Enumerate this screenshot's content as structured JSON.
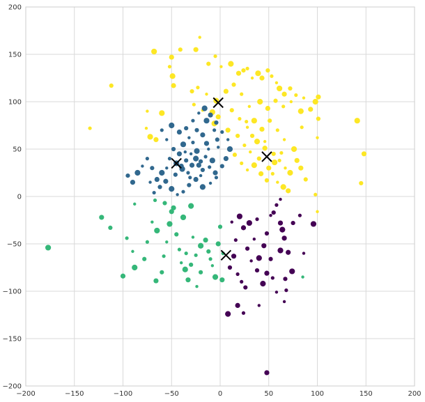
{
  "chart_data": {
    "type": "scatter",
    "title": "",
    "xlabel": "",
    "ylabel": "",
    "xlim": [
      -200,
      200
    ],
    "ylim": [
      -200,
      200
    ],
    "x_ticks": [
      -200,
      -150,
      -100,
      -50,
      0,
      50,
      100,
      150,
      200
    ],
    "y_ticks": [
      -200,
      -150,
      -100,
      -50,
      0,
      50,
      100,
      150,
      200
    ],
    "x_tick_labels": [
      "−200",
      "−150",
      "−100",
      "−50",
      "0",
      "50",
      "100",
      "150",
      "200"
    ],
    "y_tick_labels": [
      "−200",
      "−150",
      "−100",
      "−50",
      "0",
      "50",
      "100",
      "150",
      "200"
    ],
    "grid": true,
    "colors": {
      "cluster_yellow": "#fde725",
      "cluster_blue": "#31688e",
      "cluster_green": "#35b779",
      "cluster_purple": "#440154",
      "centroid_marker": "#000000",
      "grid": "#d9d9d9",
      "frame": "#cccccc"
    },
    "series": [
      {
        "color": "#fde725",
        "points": [
          [
            -68,
            153
          ],
          [
            -50,
            147
          ],
          [
            -41,
            155
          ],
          [
            -52,
            137
          ],
          [
            -21,
            168
          ],
          [
            -49,
            127
          ],
          [
            -48,
            117
          ],
          [
            -112,
            117
          ],
          [
            -134,
            72
          ],
          [
            -75,
            90
          ],
          [
            -60,
            88
          ],
          [
            -25,
            155
          ],
          [
            -12,
            140
          ],
          [
            -5,
            148
          ],
          [
            1,
            137
          ],
          [
            11,
            140
          ],
          [
            19,
            130
          ],
          [
            24,
            133
          ],
          [
            28,
            135
          ],
          [
            33,
            125
          ],
          [
            39,
            130
          ],
          [
            43,
            125
          ],
          [
            49,
            133
          ],
          [
            53,
            127
          ],
          [
            58,
            120
          ],
          [
            61,
            114
          ],
          [
            66,
            108
          ],
          [
            72,
            114
          ],
          [
            78,
            107
          ],
          [
            86,
            104
          ],
          [
            98,
            100
          ],
          [
            101,
            105
          ],
          [
            -29,
            111
          ],
          [
            -23,
            115
          ],
          [
            -14,
            108
          ],
          [
            -4,
            101
          ],
          [
            6,
            111
          ],
          [
            14,
            118
          ],
          [
            22,
            108
          ],
          [
            30,
            95
          ],
          [
            41,
            100
          ],
          [
            49,
            93
          ],
          [
            57,
            101
          ],
          [
            65,
            95
          ],
          [
            73,
            100
          ],
          [
            83,
            90
          ],
          [
            93,
            92
          ],
          [
            101,
            82
          ],
          [
            84,
            73
          ],
          [
            100,
            62
          ],
          [
            141,
            80
          ],
          [
            148,
            45
          ],
          [
            145,
            14
          ],
          [
            -27,
            97
          ],
          [
            -18,
            91
          ],
          [
            -8,
            89
          ],
          [
            -2,
            84
          ],
          [
            12,
            91
          ],
          [
            20,
            82
          ],
          [
            28,
            73
          ],
          [
            35,
            80
          ],
          [
            43,
            71
          ],
          [
            51,
            80
          ],
          [
            59,
            70
          ],
          [
            66,
            60
          ],
          [
            76,
            50
          ],
          [
            83,
            30
          ],
          [
            88,
            18
          ],
          [
            98,
            2
          ],
          [
            100,
            -16
          ],
          [
            -6,
            77
          ],
          [
            8,
            70
          ],
          [
            18,
            64
          ],
          [
            25,
            54
          ],
          [
            31,
            47
          ],
          [
            38,
            58
          ],
          [
            46,
            51
          ],
          [
            55,
            45
          ],
          [
            61,
            38
          ],
          [
            67,
            30
          ],
          [
            72,
            25
          ],
          [
            79,
            38
          ],
          [
            15,
            44
          ],
          [
            22,
            35
          ],
          [
            28,
            28
          ],
          [
            35,
            33
          ],
          [
            42,
            24
          ],
          [
            48,
            17
          ],
          [
            54,
            24
          ],
          [
            59,
            15
          ],
          [
            65,
            10
          ],
          [
            70,
            6
          ],
          [
            33,
            64
          ],
          [
            27,
            79
          ],
          [
            46,
            58
          ],
          [
            56,
            36
          ],
          [
            50,
            30
          ],
          [
            40,
            40
          ],
          [
            63,
            46
          ],
          [
            -76,
            72
          ],
          [
            -72,
            63
          ],
          [
            -66,
            60
          ]
        ]
      },
      {
        "color": "#31688e",
        "points": [
          [
            -45,
            35
          ],
          [
            -40,
            32
          ],
          [
            -35,
            38
          ],
          [
            -33,
            25
          ],
          [
            -30,
            45
          ],
          [
            -25,
            40
          ],
          [
            -22,
            33
          ],
          [
            -18,
            28
          ],
          [
            -15,
            42
          ],
          [
            -12,
            50
          ],
          [
            -8,
            38
          ],
          [
            -5,
            25
          ],
          [
            -3,
            60
          ],
          [
            -6,
            70
          ],
          [
            -2,
            52
          ],
          [
            -14,
            80
          ],
          [
            -18,
            65
          ],
          [
            -24,
            70
          ],
          [
            -28,
            57
          ],
          [
            -32,
            62
          ],
          [
            -38,
            55
          ],
          [
            -42,
            45
          ],
          [
            -48,
            50
          ],
          [
            -52,
            40
          ],
          [
            -55,
            30
          ],
          [
            -60,
            25
          ],
          [
            -65,
            18
          ],
          [
            -70,
            30
          ],
          [
            -75,
            40
          ],
          [
            -80,
            32
          ],
          [
            -85,
            25
          ],
          [
            -90,
            15
          ],
          [
            -95,
            22
          ],
          [
            -60,
            70
          ],
          [
            -55,
            60
          ],
          [
            -50,
            75
          ],
          [
            -42,
            68
          ],
          [
            -35,
            72
          ],
          [
            -28,
            80
          ],
          [
            -22,
            88
          ],
          [
            -16,
            93
          ],
          [
            -10,
            86
          ],
          [
            -4,
            78
          ],
          [
            2,
            68
          ],
          [
            8,
            60
          ],
          [
            10,
            50
          ],
          [
            6,
            40
          ],
          [
            2,
            32
          ],
          [
            -4,
            20
          ],
          [
            -10,
            14
          ],
          [
            -18,
            10
          ],
          [
            -25,
            18
          ],
          [
            -32,
            12
          ],
          [
            -38,
            5
          ],
          [
            -44,
            2
          ],
          [
            -50,
            8
          ],
          [
            -56,
            16
          ],
          [
            -62,
            10
          ],
          [
            -68,
            4
          ],
          [
            -72,
            15
          ],
          [
            -39,
            29
          ],
          [
            -29,
            33
          ],
          [
            -20,
            37
          ],
          [
            -11,
            31
          ],
          [
            -36,
            47
          ],
          [
            -24,
            48
          ],
          [
            -14,
            56
          ],
          [
            -46,
            23
          ],
          [
            -31,
            20
          ],
          [
            -20,
            22
          ]
        ]
      },
      {
        "color": "#35b779",
        "points": [
          [
            -177,
            -54
          ],
          [
            -122,
            -22
          ],
          [
            -113,
            -33
          ],
          [
            -96,
            -44
          ],
          [
            -90,
            -58
          ],
          [
            -88,
            -75
          ],
          [
            -100,
            -84
          ],
          [
            -78,
            -66
          ],
          [
            -75,
            -48
          ],
          [
            -70,
            -27
          ],
          [
            -65,
            -36
          ],
          [
            -66,
            -89
          ],
          [
            -60,
            -80
          ],
          [
            -58,
            -63
          ],
          [
            -55,
            -48
          ],
          [
            -52,
            -29
          ],
          [
            -50,
            -16
          ],
          [
            -45,
            -40
          ],
          [
            -42,
            -56
          ],
          [
            -40,
            -70
          ],
          [
            -36,
            -77
          ],
          [
            -33,
            -88
          ],
          [
            -30,
            -72
          ],
          [
            -25,
            -62
          ],
          [
            -24,
            -95
          ],
          [
            -20,
            -52
          ],
          [
            -15,
            -46
          ],
          [
            -12,
            -58
          ],
          [
            -10,
            -66
          ],
          [
            -8,
            -73
          ],
          [
            -5,
            -85
          ],
          [
            -2,
            -50
          ],
          [
            0,
            -32
          ],
          [
            3,
            -60
          ],
          [
            -28,
            -43
          ],
          [
            -38,
            -22
          ],
          [
            -48,
            -12
          ],
          [
            -57,
            -7
          ],
          [
            -67,
            -4
          ],
          [
            -88,
            -8
          ],
          [
            -30,
            -10
          ],
          [
            2,
            -88
          ],
          [
            -20,
            -80
          ],
          [
            -35,
            -60
          ],
          [
            85,
            -85
          ]
        ]
      },
      {
        "color": "#440154",
        "points": [
          [
            8,
            -124
          ],
          [
            18,
            -115
          ],
          [
            26,
            -96
          ],
          [
            24,
            -123
          ],
          [
            40,
            -115
          ],
          [
            44,
            -92
          ],
          [
            48,
            -81
          ],
          [
            52,
            -66
          ],
          [
            54,
            -86
          ],
          [
            58,
            -101
          ],
          [
            62,
            -57
          ],
          [
            66,
            -44
          ],
          [
            67,
            -87
          ],
          [
            68,
            -99
          ],
          [
            66,
            -111
          ],
          [
            74,
            -79
          ],
          [
            62,
            -28
          ],
          [
            48,
            -39
          ],
          [
            38,
            -24
          ],
          [
            35,
            -45
          ],
          [
            30,
            -28
          ],
          [
            24,
            -33
          ],
          [
            28,
            -55
          ],
          [
            16,
            -46
          ],
          [
            12,
            -27
          ],
          [
            20,
            -21
          ],
          [
            14,
            -63
          ],
          [
            10,
            -75
          ],
          [
            18,
            -82
          ],
          [
            32,
            -68
          ],
          [
            40,
            -65
          ],
          [
            45,
            -52
          ],
          [
            55,
            -17
          ],
          [
            58,
            -9
          ],
          [
            62,
            -3
          ],
          [
            64,
            -35
          ],
          [
            70,
            -59
          ],
          [
            75,
            -28
          ],
          [
            82,
            -20
          ],
          [
            86,
            -60
          ],
          [
            96,
            -29
          ],
          [
            48,
            -186
          ],
          [
            38,
            -78
          ],
          [
            22,
            -90
          ],
          [
            52,
            -20
          ]
        ]
      }
    ],
    "centroids": [
      [
        -2,
        99
      ],
      [
        -45,
        35
      ],
      [
        48,
        42
      ],
      [
        6,
        -62
      ]
    ]
  }
}
